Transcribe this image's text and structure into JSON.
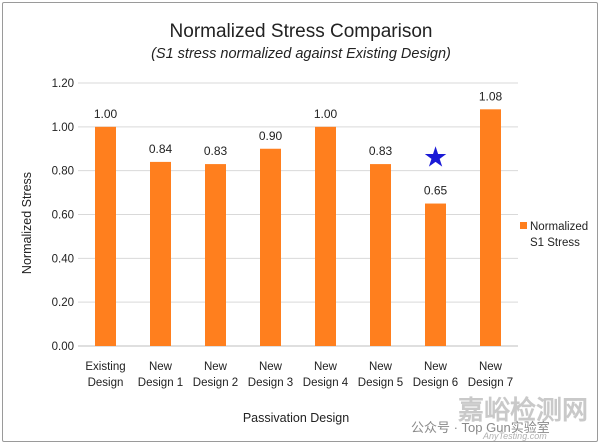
{
  "chart_data": {
    "type": "bar",
    "title": "Normalized Stress Comparison",
    "subtitle": "(S1 stress normalized against Existing Design)",
    "xlabel": "Passivation Design",
    "ylabel": "Normalized Stress",
    "ylim": [
      0,
      1.2
    ],
    "yticks": [
      "0.00",
      "0.20",
      "0.40",
      "0.60",
      "0.80",
      "1.00",
      "1.20"
    ],
    "categories": [
      [
        "Existing",
        "Design"
      ],
      [
        "New",
        "Design 1"
      ],
      [
        "New",
        "Design 2"
      ],
      [
        "New",
        "Design 3"
      ],
      [
        "New",
        "Design 4"
      ],
      [
        "New",
        "Design 5"
      ],
      [
        "New",
        "Design 6"
      ],
      [
        "New",
        "Design 7"
      ]
    ],
    "series": [
      {
        "name": [
          "Normalized",
          "S1 Stress"
        ],
        "values": [
          1.0,
          0.84,
          0.83,
          0.9,
          1.0,
          0.83,
          0.65,
          1.08
        ],
        "labels": [
          "1.00",
          "0.84",
          "0.83",
          "0.90",
          "1.00",
          "0.83",
          "0.65",
          "1.08"
        ],
        "color": "#ff7f1e"
      }
    ],
    "grid": true,
    "legend_position": "right",
    "annotation": {
      "symbol": "★",
      "category_index": 6,
      "value": 0.86,
      "color": "#1a1ad6"
    }
  },
  "watermark": {
    "wechat_text": "公众号 · Top Gun实验室",
    "site_text": "嘉峪检测网",
    "url_text": "AnyTesting.com"
  },
  "colors": {
    "gridline": "#d9d9d9",
    "axis": "#bfbfbf",
    "bar": "#ff7f1e",
    "star": "#1a1ad6"
  }
}
